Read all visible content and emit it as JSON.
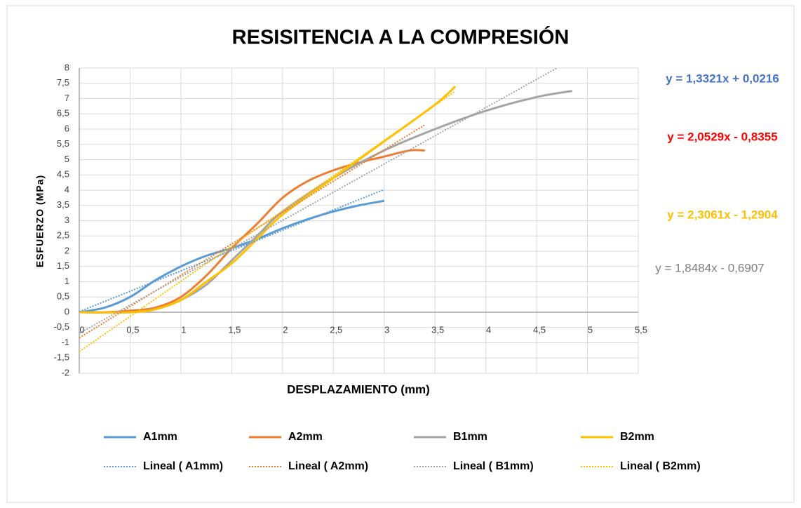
{
  "chart_data": {
    "type": "line",
    "title": "RESISITENCIA A LA COMPRESIÓN",
    "x_label": "DESPLAZAMIENTO (mm)",
    "y_label": "ESFUERZO (MPa)",
    "xlim": [
      0,
      5.5
    ],
    "ylim": [
      -2,
      8
    ],
    "grid": true,
    "legend": "bottom",
    "xticks": [
      0,
      {
        "value": 0.5,
        "label": "0,5"
      },
      1,
      {
        "value": 1.5,
        "label": "1,5"
      },
      2,
      {
        "value": 2.5,
        "label": "2,5"
      },
      3,
      {
        "value": 3.5,
        "label": "3,5"
      },
      4,
      {
        "value": 4.5,
        "label": "4,5"
      },
      5,
      {
        "value": 5.5,
        "label": "5,5"
      }
    ],
    "yticks": [
      -2,
      {
        "value": -1.5,
        "label": "-1,5"
      },
      -1,
      {
        "value": -0.5,
        "label": "-0,5"
      },
      0,
      {
        "value": 0.5,
        "label": "0,5"
      },
      1,
      {
        "value": 1.5,
        "label": "1,5"
      },
      2,
      {
        "value": 2.5,
        "label": "2,5"
      },
      3,
      {
        "value": 3.5,
        "label": "3,5"
      },
      4,
      {
        "value": 4.5,
        "label": "4,5"
      },
      5,
      {
        "value": 5.5,
        "label": "5,5"
      },
      6,
      {
        "value": 6.5,
        "label": "6,5"
      },
      7,
      {
        "value": 7.5,
        "label": "7,5"
      },
      8
    ],
    "series": [
      {
        "name": "A1mm",
        "color": "#5b9bd5",
        "dash": "solid",
        "x": [
          0,
          0.25,
          0.5,
          0.75,
          1,
          1.25,
          1.5,
          1.75,
          2,
          2.25,
          2.5,
          2.75,
          3
        ],
        "values": [
          0,
          0.15,
          0.5,
          1.05,
          1.5,
          1.85,
          2.1,
          2.4,
          2.75,
          3.05,
          3.3,
          3.5,
          3.65
        ]
      },
      {
        "name": "A2mm",
        "color": "#ed7d31",
        "dash": "solid",
        "x": [
          0,
          0.25,
          0.5,
          0.75,
          1,
          1.25,
          1.5,
          1.75,
          2,
          2.25,
          2.5,
          2.75,
          3,
          3.25,
          3.4
        ],
        "values": [
          0,
          0,
          0.05,
          0.15,
          0.5,
          1.2,
          2.1,
          2.9,
          3.75,
          4.3,
          4.65,
          4.9,
          5.1,
          5.3,
          5.3
        ]
      },
      {
        "name": "B1mm",
        "color": "#a5a5a5",
        "dash": "solid",
        "x": [
          0,
          0.5,
          0.75,
          1,
          1.25,
          1.5,
          1.75,
          2,
          2.5,
          3,
          3.5,
          4,
          4.5,
          4.85
        ],
        "values": [
          0,
          0,
          0.1,
          0.4,
          0.9,
          1.7,
          2.5,
          3.3,
          4.4,
          5.3,
          6.0,
          6.6,
          7.05,
          7.25
        ]
      },
      {
        "name": "B2mm",
        "color": "#ffc000",
        "dash": "solid",
        "x": [
          0,
          0.5,
          0.75,
          1,
          1.25,
          1.5,
          1.75,
          2,
          2.5,
          3,
          3.5,
          3.7
        ],
        "values": [
          0,
          0,
          0.1,
          0.4,
          1.0,
          1.6,
          2.4,
          3.2,
          4.4,
          5.6,
          6.8,
          7.4
        ]
      },
      {
        "name": "Lineal ( A1mm)",
        "color": "#5b9bd5",
        "dash": "dotted",
        "x": [
          0,
          3
        ],
        "values": [
          0.02,
          4.02
        ]
      },
      {
        "name": "Lineal ( A2mm)",
        "color": "#ed7d31",
        "dash": "dotted",
        "x": [
          0,
          3.4
        ],
        "values": [
          -0.84,
          6.14
        ]
      },
      {
        "name": "Lineal ( B1mm)",
        "color": "#a5a5a5",
        "dash": "dotted",
        "x": [
          0,
          4.7
        ],
        "values": [
          -0.69,
          8.0
        ]
      },
      {
        "name": "Lineal ( B2mm)",
        "color": "#ffc000",
        "dash": "dotted",
        "x": [
          0,
          3.7
        ],
        "values": [
          -1.29,
          7.24
        ]
      }
    ],
    "annotations": [
      {
        "text": "y = 1,3321x + 0,0216",
        "color": "#4472c4"
      },
      {
        "text": "y = 2,0529x - 0,8355",
        "color": "#ff0000"
      },
      {
        "text": "y = 2,3061x - 1,2904",
        "color": "#ffc000"
      },
      {
        "text": "y = 1,8484x - 0,6907",
        "color": "#7f7f7f"
      }
    ]
  }
}
